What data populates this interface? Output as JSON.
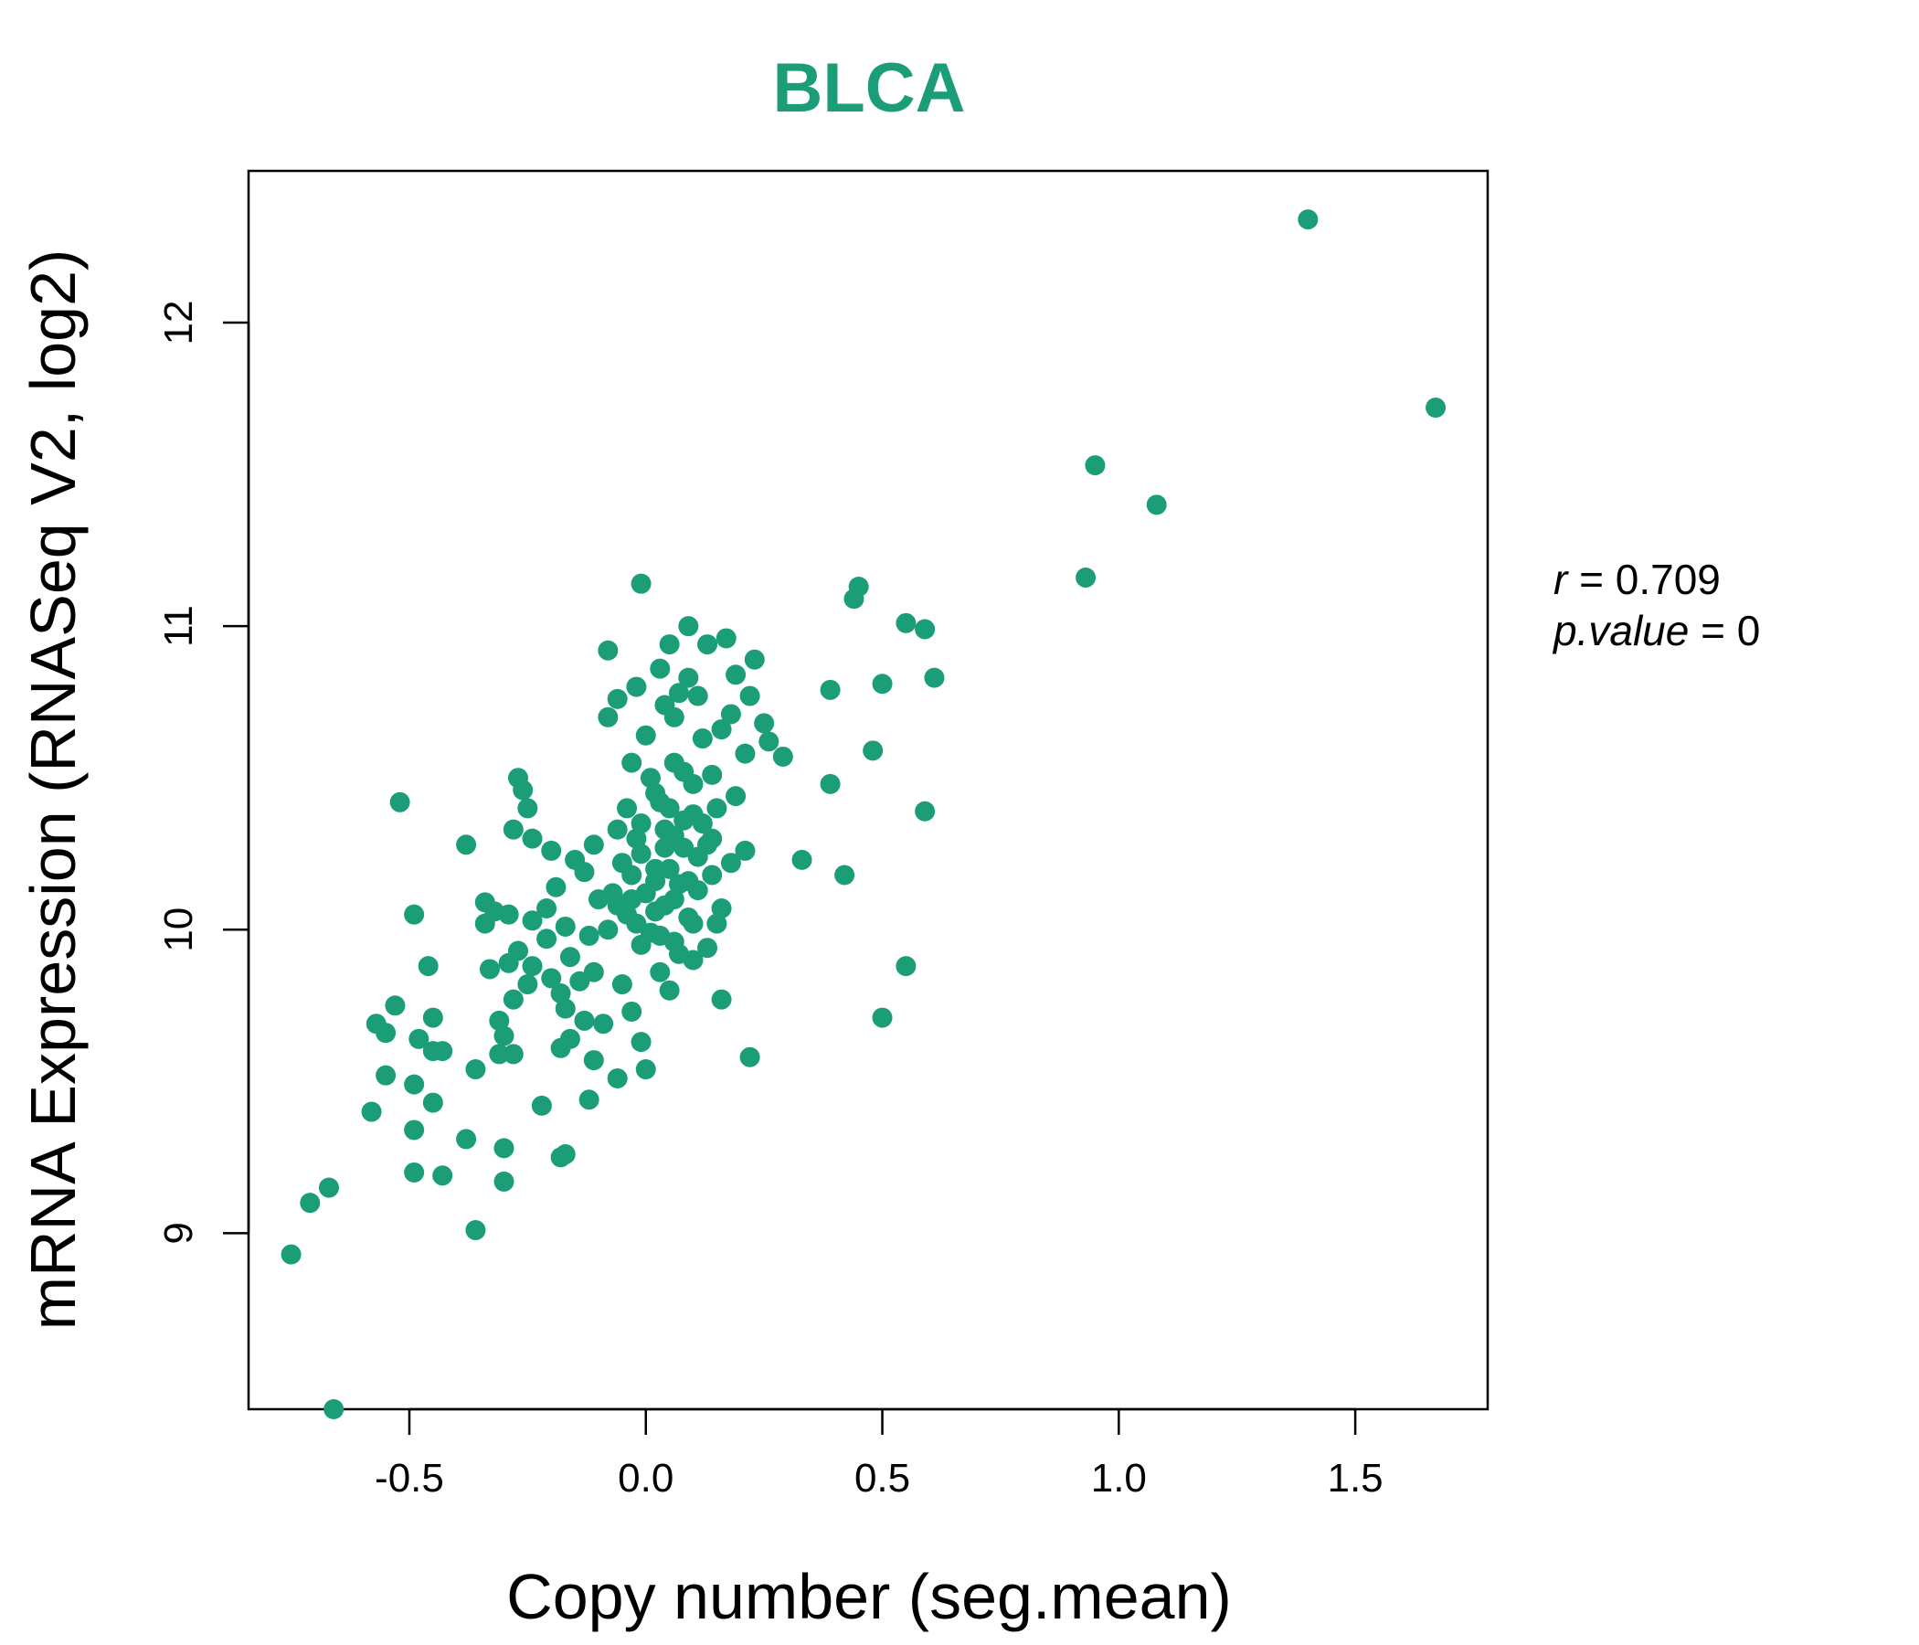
{
  "chart_data": {
    "type": "scatter",
    "title": "BLCA",
    "xlabel": "Copy number (seg.mean)",
    "ylabel": "mRNA Expression (RNASeq V2, log2)",
    "xlim": [
      -0.84,
      1.78
    ],
    "ylim": [
      8.42,
      12.5
    ],
    "x_ticks": [
      -0.5,
      0.0,
      0.5,
      1.0,
      1.5
    ],
    "x_tick_labels": [
      "-0.5",
      "0.0",
      "0.5",
      "1.0",
      "1.5"
    ],
    "y_ticks": [
      9,
      10,
      11,
      12
    ],
    "y_tick_labels": [
      "9",
      "10",
      "11",
      "12"
    ],
    "grid": false,
    "point_color": "#1b9e77",
    "stats": {
      "r_label": "r",
      "r_value": "0.709",
      "p_label": "p.value",
      "p_value": "0"
    },
    "points": [
      [
        1.4,
        12.34
      ],
      [
        1.67,
        11.72
      ],
      [
        0.95,
        11.53
      ],
      [
        1.08,
        11.4
      ],
      [
        0.93,
        11.16
      ],
      [
        0.45,
        11.13
      ],
      [
        0.44,
        11.09
      ],
      [
        0.55,
        11.01
      ],
      [
        0.59,
        10.99
      ],
      [
        0.61,
        10.83
      ],
      [
        0.5,
        10.81
      ],
      [
        0.39,
        10.79
      ],
      [
        0.48,
        10.59
      ],
      [
        0.39,
        10.48
      ],
      [
        0.59,
        10.39
      ],
      [
        0.33,
        10.23
      ],
      [
        0.42,
        10.18
      ],
      [
        0.55,
        9.88
      ],
      [
        0.5,
        9.71
      ],
      [
        0.22,
        9.58
      ],
      [
        -0.01,
        11.14
      ],
      [
        0.09,
        11.0
      ],
      [
        0.17,
        10.96
      ],
      [
        0.13,
        10.94
      ],
      [
        0.05,
        10.94
      ],
      [
        0.23,
        10.89
      ],
      [
        -0.08,
        10.92
      ],
      [
        0.03,
        10.86
      ],
      [
        0.19,
        10.84
      ],
      [
        0.09,
        10.83
      ],
      [
        -0.02,
        10.8
      ],
      [
        0.11,
        10.77
      ],
      [
        0.07,
        10.78
      ],
      [
        -0.06,
        10.76
      ],
      [
        0.22,
        10.77
      ],
      [
        0.04,
        10.74
      ],
      [
        0.18,
        10.71
      ],
      [
        -0.08,
        10.7
      ],
      [
        0.06,
        10.7
      ],
      [
        0.25,
        10.68
      ],
      [
        0.16,
        10.66
      ],
      [
        0.0,
        10.64
      ],
      [
        0.12,
        10.63
      ],
      [
        0.29,
        10.57
      ],
      [
        0.21,
        10.58
      ],
      [
        0.26,
        10.62
      ],
      [
        -0.03,
        10.55
      ],
      [
        0.08,
        10.52
      ],
      [
        0.14,
        10.51
      ],
      [
        -0.27,
        10.5
      ],
      [
        -0.26,
        10.46
      ],
      [
        0.19,
        10.44
      ],
      [
        -0.52,
        10.42
      ],
      [
        -0.25,
        10.4
      ],
      [
        0.03,
        10.42
      ],
      [
        0.1,
        10.38
      ],
      [
        -0.01,
        10.35
      ],
      [
        -0.28,
        10.33
      ],
      [
        0.06,
        10.31
      ],
      [
        -0.24,
        10.3
      ],
      [
        -0.38,
        10.28
      ],
      [
        -0.11,
        10.28
      ],
      [
        0.14,
        10.3
      ],
      [
        0.21,
        10.26
      ],
      [
        -0.2,
        10.26
      ],
      [
        0.18,
        10.22
      ],
      [
        -0.15,
        10.23
      ],
      [
        -0.05,
        10.22
      ],
      [
        0.02,
        10.2
      ],
      [
        -0.13,
        10.19
      ],
      [
        0.09,
        10.16
      ],
      [
        -0.19,
        10.14
      ],
      [
        0.11,
        10.13
      ],
      [
        -0.07,
        10.12
      ],
      [
        -0.34,
        10.09
      ],
      [
        -0.1,
        10.1
      ],
      [
        0.04,
        10.08
      ],
      [
        0.16,
        10.07
      ],
      [
        -0.32,
        10.06
      ],
      [
        -0.21,
        10.07
      ],
      [
        -0.29,
        10.05
      ],
      [
        -0.49,
        10.05
      ],
      [
        -0.04,
        10.05
      ],
      [
        -0.24,
        10.03
      ],
      [
        0.1,
        10.02
      ],
      [
        -0.34,
        10.02
      ],
      [
        0.15,
        10.02
      ],
      [
        -0.17,
        10.01
      ],
      [
        -0.08,
        10.0
      ],
      [
        0.01,
        9.99
      ],
      [
        -0.12,
        9.98
      ],
      [
        -0.21,
        9.97
      ],
      [
        0.06,
        9.96
      ],
      [
        -0.01,
        9.95
      ],
      [
        0.13,
        9.94
      ],
      [
        -0.27,
        9.93
      ],
      [
        0.07,
        9.92
      ],
      [
        -0.16,
        9.91
      ],
      [
        0.1,
        9.9
      ],
      [
        -0.29,
        9.89
      ],
      [
        -0.24,
        9.88
      ],
      [
        -0.46,
        9.88
      ],
      [
        -0.33,
        9.87
      ],
      [
        -0.11,
        9.86
      ],
      [
        0.03,
        9.86
      ],
      [
        -0.2,
        9.84
      ],
      [
        -0.14,
        9.83
      ],
      [
        -0.25,
        9.82
      ],
      [
        -0.05,
        9.82
      ],
      [
        0.05,
        9.8
      ],
      [
        -0.18,
        9.79
      ],
      [
        0.16,
        9.77
      ],
      [
        -0.28,
        9.77
      ],
      [
        -0.53,
        9.75
      ],
      [
        -0.17,
        9.74
      ],
      [
        -0.03,
        9.73
      ],
      [
        -0.45,
        9.71
      ],
      [
        -0.31,
        9.7
      ],
      [
        -0.13,
        9.7
      ],
      [
        -0.57,
        9.69
      ],
      [
        -0.09,
        9.69
      ],
      [
        -0.55,
        9.66
      ],
      [
        -0.3,
        9.65
      ],
      [
        -0.48,
        9.64
      ],
      [
        -0.16,
        9.64
      ],
      [
        -0.01,
        9.63
      ],
      [
        -0.45,
        9.6
      ],
      [
        -0.43,
        9.6
      ],
      [
        -0.31,
        9.59
      ],
      [
        -0.28,
        9.59
      ],
      [
        -0.18,
        9.61
      ],
      [
        -0.11,
        9.57
      ],
      [
        -0.36,
        9.54
      ],
      [
        0.0,
        9.54
      ],
      [
        -0.55,
        9.52
      ],
      [
        -0.06,
        9.51
      ],
      [
        -0.49,
        9.49
      ],
      [
        -0.12,
        9.44
      ],
      [
        -0.45,
        9.43
      ],
      [
        -0.22,
        9.42
      ],
      [
        -0.58,
        9.4
      ],
      [
        -0.49,
        9.34
      ],
      [
        -0.38,
        9.31
      ],
      [
        -0.3,
        9.28
      ],
      [
        -0.17,
        9.26
      ],
      [
        -0.18,
        9.25
      ],
      [
        -0.49,
        9.2
      ],
      [
        -0.43,
        9.19
      ],
      [
        -0.3,
        9.17
      ],
      [
        -0.67,
        9.15
      ],
      [
        -0.71,
        9.1
      ],
      [
        -0.36,
        9.01
      ],
      [
        -0.75,
        8.93
      ],
      [
        -0.66,
        8.42
      ],
      [
        0.02,
        10.45
      ],
      [
        0.05,
        10.4
      ],
      [
        0.08,
        10.36
      ],
      [
        -0.02,
        10.3
      ],
      [
        0.04,
        10.27
      ],
      [
        0.11,
        10.24
      ],
      [
        -0.03,
        10.18
      ],
      [
        0.07,
        10.15
      ],
      [
        0.0,
        10.12
      ],
      [
        0.06,
        10.1
      ],
      [
        -0.06,
        10.08
      ],
      [
        0.02,
        10.06
      ],
      [
        0.09,
        10.04
      ],
      [
        -0.02,
        10.02
      ],
      [
        0.03,
        9.98
      ],
      [
        0.12,
        10.35
      ],
      [
        0.15,
        10.4
      ],
      [
        0.01,
        10.5
      ],
      [
        0.06,
        10.55
      ],
      [
        -0.04,
        10.4
      ],
      [
        0.1,
        10.48
      ],
      [
        -0.06,
        10.33
      ],
      [
        0.13,
        10.28
      ],
      [
        0.04,
        10.33
      ],
      [
        -0.01,
        10.25
      ],
      [
        0.08,
        10.27
      ],
      [
        0.02,
        10.16
      ],
      [
        -0.03,
        10.1
      ],
      [
        0.05,
        10.2
      ],
      [
        0.14,
        10.18
      ]
    ]
  }
}
